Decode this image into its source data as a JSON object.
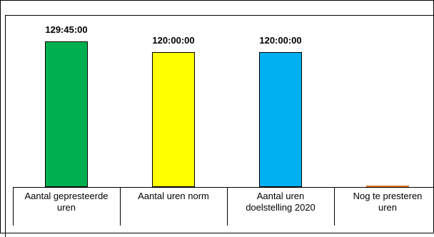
{
  "chart_data": {
    "type": "bar",
    "categories": [
      "Aantal gepresteerde uren",
      "Aantal uren norm",
      "Aantal uren doelstelling 2020",
      "Nog te presteren uren"
    ],
    "values": [
      129.75,
      120,
      120,
      0
    ],
    "value_labels": [
      "129:45:00",
      "120:00:00",
      "120:00:00",
      null
    ],
    "colors": [
      "#00b050",
      "#ffff00",
      "#00b0f0",
      "#e46c0a"
    ]
  }
}
